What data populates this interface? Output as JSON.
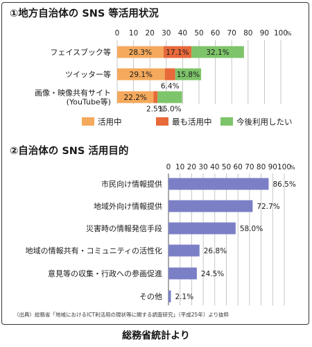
{
  "chart_data": [
    {
      "type": "bar",
      "stacked": true,
      "orientation": "horizontal",
      "title": "①地方自治体の SNS 等活用状況",
      "categories": [
        "フェイスブック等",
        "ツイッター等",
        "画像・映像共有サイト\n(YouTube等)"
      ],
      "series": [
        {
          "name": "活用中",
          "values": [
            28.3,
            29.1,
            22.2
          ],
          "color": "#f4a95c"
        },
        {
          "name": "最も活用中",
          "values": [
            17.1,
            6.4,
            2.5
          ],
          "color": "#e8693a"
        },
        {
          "name": "今後利用したい",
          "values": [
            32.1,
            15.8,
            15.0
          ],
          "color": "#7ec46a"
        }
      ],
      "xlim": [
        0,
        100
      ],
      "xticks": [
        0,
        10,
        20,
        30,
        40,
        50,
        60,
        70,
        80,
        90,
        100
      ],
      "unit": "%",
      "grid": true,
      "legend_position": "bottom"
    },
    {
      "type": "bar",
      "orientation": "horizontal",
      "title": "②自治体の SNS 活用目的",
      "categories": [
        "市民向け情報提供",
        "地域外向け情報提供",
        "災害時の情報発信手段",
        "地域の情報共有・コミュニティの活性化",
        "意見等の収集・行政への参画促進",
        "その他"
      ],
      "values": [
        86.5,
        72.7,
        58.0,
        26.8,
        24.5,
        2.1
      ],
      "value_labels": [
        "86.5%",
        "72.7%",
        "58.0%",
        "26.8%",
        "24.5%",
        "2.1%"
      ],
      "xlim": [
        0,
        100
      ],
      "xticks": [
        0,
        10,
        20,
        30,
        40,
        50,
        60,
        70,
        80,
        90,
        100
      ],
      "unit": "%",
      "bar_color": "#7b7fc6",
      "grid": true
    }
  ],
  "source": "（出典）総務省「地域におけるICT利活用の現状等に関する調査研究」（平成25年）より抜粋",
  "caption": "総務省統計より"
}
